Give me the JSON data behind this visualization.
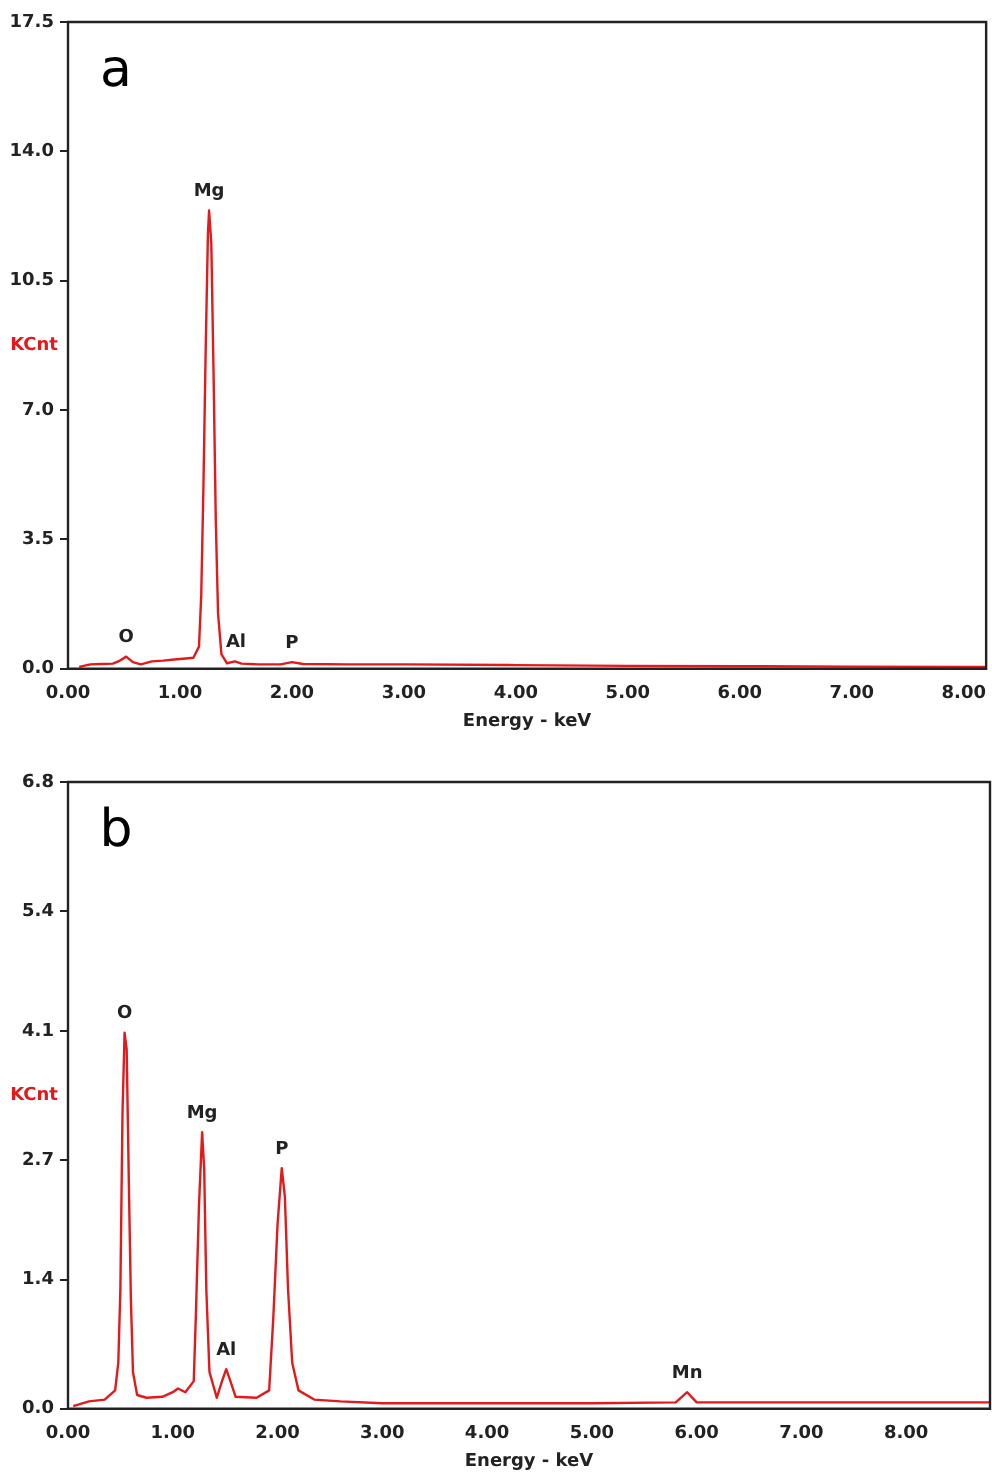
{
  "chart_data": [
    {
      "type": "line",
      "xlabel": "Energy - keV",
      "ylabel": "KCnt",
      "annotations": [
        "a",
        {
          "text": "O",
          "x": 0.52,
          "y": 0.33
        },
        {
          "text": "Mg",
          "x": 1.26,
          "y": 12.4
        },
        {
          "text": "Al",
          "x": 1.5,
          "y": 0.2
        },
        {
          "text": "P",
          "x": 2.0,
          "y": 0.18
        }
      ],
      "xlim": [
        0,
        8.2
      ],
      "xticks": [
        {
          "value": 0,
          "label": "0.00"
        },
        {
          "value": 1,
          "label": "1.00"
        },
        {
          "value": 2,
          "label": "2.00"
        },
        {
          "value": 3,
          "label": "3.00"
        },
        {
          "value": 4,
          "label": "4.00"
        },
        {
          "value": 5,
          "label": "5.00"
        },
        {
          "value": 6,
          "label": "6.00"
        },
        {
          "value": 7,
          "label": "7.00"
        },
        {
          "value": 8,
          "label": "8.00"
        }
      ],
      "ylim": [
        0,
        17.5
      ],
      "yticks": [
        {
          "value": 0,
          "label": "0.0"
        },
        3.5,
        {
          "value": 7,
          "label": "7.0"
        },
        10.5,
        {
          "value": 14,
          "label": "14.0"
        },
        17.5
      ],
      "grid": false,
      "legend": false,
      "marker": "none",
      "line_style": "solid",
      "series": [
        {
          "color": "#e31a1c",
          "x": [
            0.1,
            0.2,
            0.3,
            0.4,
            0.45,
            0.52,
            0.58,
            0.65,
            0.75,
            0.85,
            0.95,
            1.05,
            1.12,
            1.17,
            1.19,
            1.21,
            1.23,
            1.25,
            1.26,
            1.28,
            1.3,
            1.32,
            1.34,
            1.37,
            1.42,
            1.49,
            1.55,
            1.7,
            1.9,
            2.0,
            2.1,
            2.5,
            3.0,
            4.0,
            5.0,
            6.0,
            7.0,
            8.0,
            8.2
          ],
          "values": [
            0.05,
            0.12,
            0.13,
            0.14,
            0.2,
            0.33,
            0.18,
            0.12,
            0.2,
            0.22,
            0.25,
            0.28,
            0.3,
            0.6,
            2.0,
            5.0,
            8.7,
            11.8,
            12.4,
            11.5,
            8.0,
            4.0,
            1.5,
            0.4,
            0.15,
            0.2,
            0.14,
            0.12,
            0.12,
            0.18,
            0.13,
            0.12,
            0.12,
            0.1,
            0.08,
            0.07,
            0.06,
            0.05,
            0.05
          ]
        }
      ]
    },
    {
      "type": "line",
      "xlabel": "Energy - keV",
      "ylabel": "KCnt",
      "annotations": [
        "b",
        {
          "text": "O",
          "x": 0.54,
          "y": 4.08
        },
        {
          "text": "Mg",
          "x": 1.28,
          "y": 3.0
        },
        {
          "text": "Al",
          "x": 1.51,
          "y": 0.43
        },
        {
          "text": "P",
          "x": 2.04,
          "y": 2.61
        },
        {
          "text": "Mn",
          "x": 5.91,
          "y": 0.18
        }
      ],
      "xlim": [
        0,
        8.8
      ],
      "xticks": [
        {
          "value": 0,
          "label": "0.00"
        },
        {
          "value": 1,
          "label": "1.00"
        },
        {
          "value": 2,
          "label": "2.00"
        },
        {
          "value": 3,
          "label": "3.00"
        },
        {
          "value": 4,
          "label": "4.00"
        },
        {
          "value": 5,
          "label": "5.00"
        },
        {
          "value": 6,
          "label": "6.00"
        },
        {
          "value": 7,
          "label": "7.00"
        },
        {
          "value": 8,
          "label": "8.00"
        }
      ],
      "ylim": [
        0,
        6.8
      ],
      "yticks": [
        {
          "value": 0,
          "label": "0.0"
        },
        1.4,
        2.7,
        4.1,
        5.4,
        6.8
      ],
      "grid": false,
      "legend": false,
      "marker": "none",
      "line_style": "solid",
      "series": [
        {
          "color": "#e31a1c",
          "x": [
            0.05,
            0.2,
            0.35,
            0.45,
            0.48,
            0.5,
            0.52,
            0.54,
            0.56,
            0.58,
            0.6,
            0.62,
            0.66,
            0.75,
            0.9,
            1.0,
            1.05,
            1.12,
            1.2,
            1.22,
            1.25,
            1.28,
            1.3,
            1.32,
            1.35,
            1.42,
            1.47,
            1.51,
            1.55,
            1.6,
            1.8,
            1.92,
            1.96,
            2.0,
            2.04,
            2.07,
            2.1,
            2.14,
            2.2,
            2.35,
            2.6,
            3.0,
            4.0,
            5.0,
            5.8,
            5.91,
            6.0,
            7.0,
            8.0,
            8.8
          ],
          "values": [
            0.03,
            0.08,
            0.1,
            0.2,
            0.5,
            1.3,
            3.2,
            4.08,
            3.9,
            2.5,
            1.2,
            0.4,
            0.15,
            0.12,
            0.13,
            0.18,
            0.22,
            0.18,
            0.3,
            1.0,
            2.2,
            3.0,
            2.6,
            1.3,
            0.4,
            0.12,
            0.3,
            0.43,
            0.3,
            0.13,
            0.12,
            0.2,
            1.0,
            2.0,
            2.61,
            2.3,
            1.3,
            0.5,
            0.2,
            0.1,
            0.08,
            0.06,
            0.06,
            0.06,
            0.07,
            0.18,
            0.07,
            0.07,
            0.07,
            0.07
          ]
        }
      ]
    }
  ]
}
